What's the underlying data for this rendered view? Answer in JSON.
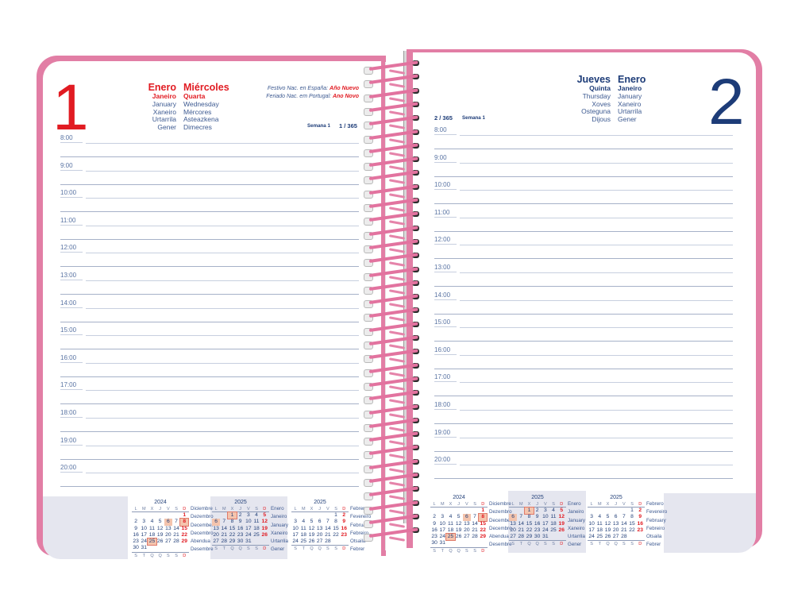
{
  "planner": {
    "colors": {
      "cover_pink": "#e27ea5",
      "accent_red": "#e11b22",
      "accent_navy": "#1d3c78",
      "text_blue": "#3d5a91",
      "line_gray": "#c7cfdf"
    },
    "left_page": {
      "day_number": "1",
      "months": [
        "Enero",
        "Janeiro",
        "January",
        "Xaneiro",
        "Urtarrila",
        "Gener"
      ],
      "weekdays": [
        "Miércoles",
        "Quarta",
        "Wednesday",
        "Mércores",
        "Asteazkena",
        "Dimecres"
      ],
      "holiday_lines": [
        {
          "prefix": "Festivo Nac. en España: ",
          "name": "Año Nuevo"
        },
        {
          "prefix": "Feriado Nac. em Portugal: ",
          "name": "Ano Novo"
        }
      ],
      "week_label": "Semana 1",
      "day_of_year": "1 / 365",
      "hours": [
        "8:00",
        "9:00",
        "10:00",
        "11:00",
        "12:00",
        "13:00",
        "14:00",
        "15:00",
        "16:00",
        "17:00",
        "18:00",
        "19:00",
        "20:00"
      ]
    },
    "right_page": {
      "day_number": "2",
      "weekdays": [
        "Jueves",
        "Quinta",
        "Thursday",
        "Xoves",
        "Osteguna",
        "Dijous"
      ],
      "months": [
        "Enero",
        "Janeiro",
        "January",
        "Xaneiro",
        "Urtarrila",
        "Gener"
      ],
      "week_label": "Semana 1",
      "day_of_year": "2 / 365",
      "hours": [
        "8:00",
        "9:00",
        "10:00",
        "11:00",
        "12:00",
        "13:00",
        "14:00",
        "15:00",
        "16:00",
        "17:00",
        "18:00",
        "19:00",
        "20:00"
      ]
    },
    "mini_calendars": [
      {
        "year": "2024",
        "header": [
          "L",
          "M",
          "X",
          "J",
          "V",
          "S",
          "D"
        ],
        "footer": [
          "S",
          "T",
          "Q",
          "Q",
          "S",
          "S",
          "D"
        ],
        "weeks": [
          [
            "",
            "",
            "",
            "",
            "",
            "",
            "1"
          ],
          [
            "2",
            "3",
            "4",
            "5",
            "6",
            "7",
            "8"
          ],
          [
            "9",
            "10",
            "11",
            "12",
            "13",
            "14",
            "15"
          ],
          [
            "16",
            "17",
            "18",
            "19",
            "20",
            "21",
            "22"
          ],
          [
            "23",
            "24",
            "25",
            "26",
            "27",
            "28",
            "29"
          ],
          [
            "30",
            "31",
            "",
            "",
            "",
            "",
            ""
          ]
        ],
        "highlighted": [
          "6",
          "8",
          "25"
        ],
        "month_names": [
          "Diciembre",
          "Dezembro",
          "December",
          "Decembro",
          "Abendua",
          "Desembre"
        ]
      },
      {
        "year": "2025",
        "header": [
          "L",
          "M",
          "X",
          "J",
          "V",
          "S",
          "D"
        ],
        "footer": [
          "S",
          "T",
          "Q",
          "Q",
          "S",
          "S",
          "D"
        ],
        "weeks": [
          [
            "",
            "",
            "1",
            "2",
            "3",
            "4",
            "5"
          ],
          [
            "6",
            "7",
            "8",
            "9",
            "10",
            "11",
            "12"
          ],
          [
            "13",
            "14",
            "15",
            "16",
            "17",
            "18",
            "19"
          ],
          [
            "20",
            "21",
            "22",
            "23",
            "24",
            "25",
            "26"
          ],
          [
            "27",
            "28",
            "29",
            "30",
            "31",
            "",
            ""
          ]
        ],
        "highlighted": [
          "1",
          "6"
        ],
        "month_names": [
          "Enero",
          "Janeiro",
          "January",
          "Xaneiro",
          "Urtarrila",
          "Gener"
        ]
      },
      {
        "year": "2025",
        "header": [
          "L",
          "M",
          "X",
          "J",
          "V",
          "S",
          "D"
        ],
        "footer": [
          "S",
          "T",
          "Q",
          "Q",
          "S",
          "S",
          "D"
        ],
        "weeks": [
          [
            "",
            "",
            "",
            "",
            "",
            "1",
            "2"
          ],
          [
            "3",
            "4",
            "5",
            "6",
            "7",
            "8",
            "9"
          ],
          [
            "10",
            "11",
            "12",
            "13",
            "14",
            "15",
            "16"
          ],
          [
            "17",
            "18",
            "19",
            "20",
            "21",
            "22",
            "23"
          ],
          [
            "24",
            "25",
            "26",
            "27",
            "28",
            "",
            ""
          ]
        ],
        "highlighted": [],
        "month_names": [
          "Febrero",
          "Fevereiro",
          "February",
          "Febreiro",
          "Otsaila",
          "Febrer"
        ]
      }
    ]
  }
}
